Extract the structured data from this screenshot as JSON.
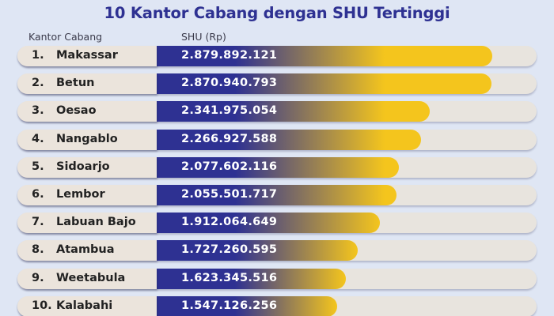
{
  "title": "10 Kantor Cabang dengan SHU Tertinggi",
  "header": {
    "branch_label": "Kantor Cabang",
    "shu_label": "SHU (Rp)"
  },
  "colors": {
    "bar_start": "#2e3192",
    "bar_end": "#f4c51d",
    "track": "#e8e4de",
    "label_box": "#ebe4dc",
    "background": "#dfe6f4",
    "title": "#2e3192"
  },
  "chart_data": {
    "type": "bar",
    "title": "10 Kantor Cabang dengan SHU Tertinggi",
    "xlabel": "Kantor Cabang",
    "ylabel": "SHU (Rp)",
    "categories": [
      "Makassar",
      "Betun",
      "Oesao",
      "Nangablo",
      "Sidoarjo",
      "Lembor",
      "Labuan Bajo",
      "Atambua",
      "Weetabula",
      "Kalabahi"
    ],
    "ranks": [
      "1.",
      "2.",
      "3.",
      "4.",
      "5.",
      "6.",
      "7.",
      "8.",
      "9.",
      "10."
    ],
    "values": [
      2879892121,
      2870940793,
      2341975054,
      2266927588,
      2077602116,
      2055501717,
      1912064649,
      1727260595,
      1623345516,
      1547126256
    ],
    "value_labels": [
      "2.879.892.121",
      "2.870.940.793",
      "2.341.975.054",
      "2.266.927.588",
      "2.077.602.116",
      "2.055.501.717",
      "1.912.064.649",
      "1.727.260.595",
      "1.623.345.516",
      "1.547.126.256"
    ]
  }
}
